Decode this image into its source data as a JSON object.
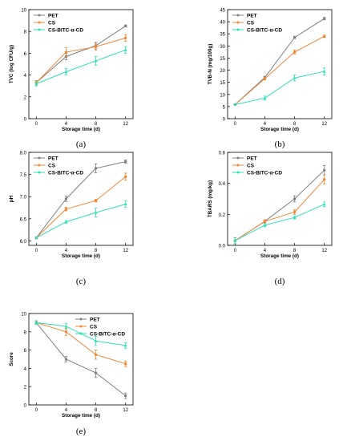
{
  "chart_data": [
    {
      "type": "line",
      "panel": "(a)",
      "xlabel": "Storage time (d)",
      "ylabel": "TVC (log CFU/g)",
      "x": [
        0,
        4,
        8,
        12
      ],
      "xlim": [
        -1,
        13
      ],
      "ylim": [
        0,
        10
      ],
      "yticks": [
        0,
        2,
        4,
        6,
        8,
        10
      ],
      "legend_position": "top-left",
      "series": [
        {
          "name": "PET",
          "color": "#808080",
          "values": [
            3.3,
            5.7,
            6.7,
            8.5
          ],
          "errors": [
            0.2,
            0.3,
            0.3,
            0.1
          ]
        },
        {
          "name": "CS",
          "color": "#f0883a",
          "values": [
            3.3,
            6.1,
            6.6,
            7.4
          ],
          "errors": [
            0.2,
            0.4,
            0.3,
            0.3
          ]
        },
        {
          "name": "CS-BITC-α-CD",
          "color": "#2ee0b8",
          "values": [
            3.2,
            4.3,
            5.3,
            6.3
          ],
          "errors": [
            0.2,
            0.3,
            0.4,
            0.3
          ]
        }
      ]
    },
    {
      "type": "line",
      "panel": "(b)",
      "xlabel": "Storage time (d)",
      "ylabel": "TVB-N (mg/100g)",
      "x": [
        0,
        4,
        8,
        12
      ],
      "xlim": [
        -1,
        13
      ],
      "ylim": [
        0,
        45
      ],
      "yticks": [
        0,
        5,
        10,
        15,
        20,
        25,
        30,
        35,
        40,
        45
      ],
      "legend_position": "top-left",
      "series": [
        {
          "name": "PET",
          "color": "#808080",
          "values": [
            5.8,
            17,
            33.5,
            41.3
          ],
          "errors": [
            0.3,
            0.5,
            0.5,
            0.5
          ]
        },
        {
          "name": "CS",
          "color": "#f0883a",
          "values": [
            5.8,
            16.5,
            27.5,
            34
          ],
          "errors": [
            0.3,
            0.5,
            0.8,
            0.5
          ]
        },
        {
          "name": "CS-BITC-α-CD",
          "color": "#2ee0b8",
          "values": [
            5.8,
            8.5,
            16.8,
            19.5
          ],
          "errors": [
            0.3,
            0.8,
            1.2,
            1.5
          ]
        }
      ]
    },
    {
      "type": "line",
      "panel": "(c)",
      "xlabel": "Storage time (d)",
      "ylabel": "pH",
      "x": [
        0,
        4,
        8,
        12
      ],
      "xlim": [
        -1,
        13
      ],
      "ylim": [
        5.9,
        8.0
      ],
      "yticks": [
        6.0,
        6.5,
        7.0,
        7.5,
        8.0
      ],
      "ytick_labels": [
        "6.0",
        "6.5",
        "7.0",
        "7.5",
        "8.0"
      ],
      "legend_position": "top-left",
      "series": [
        {
          "name": "PET",
          "color": "#808080",
          "values": [
            6.07,
            6.95,
            7.64,
            7.79
          ],
          "errors": [
            0.02,
            0.06,
            0.1,
            0.04
          ]
        },
        {
          "name": "CS",
          "color": "#f0883a",
          "values": [
            6.07,
            6.72,
            6.91,
            7.45
          ],
          "errors": [
            0.02,
            0.04,
            0.03,
            0.08
          ]
        },
        {
          "name": "CS-BITC-α-CD",
          "color": "#2ee0b8",
          "values": [
            6.07,
            6.43,
            6.64,
            6.83
          ],
          "errors": [
            0.02,
            0.03,
            0.1,
            0.07
          ]
        }
      ]
    },
    {
      "type": "line",
      "panel": "(d)",
      "xlabel": "Storage time (d)",
      "ylabel": "TBARS (mg/kg)",
      "x": [
        0,
        4,
        8,
        12
      ],
      "xlim": [
        -1,
        13
      ],
      "ylim": [
        0,
        0.6
      ],
      "yticks": [
        0.0,
        0.2,
        0.4,
        0.6
      ],
      "ytick_labels": [
        "0.0",
        "0.2",
        "0.4",
        "0.6"
      ],
      "legend_position": "top-left",
      "series": [
        {
          "name": "PET",
          "color": "#808080",
          "values": [
            0.03,
            0.155,
            0.3,
            0.485
          ],
          "errors": [
            0.02,
            0.01,
            0.02,
            0.03
          ]
        },
        {
          "name": "CS",
          "color": "#f0883a",
          "values": [
            0.03,
            0.155,
            0.215,
            0.425
          ],
          "errors": [
            0.02,
            0.01,
            0.015,
            0.03
          ]
        },
        {
          "name": "CS-BITC-α-CD",
          "color": "#2ee0b8",
          "values": [
            0.03,
            0.13,
            0.18,
            0.265
          ],
          "errors": [
            0.02,
            0.01,
            0.01,
            0.015
          ]
        }
      ]
    },
    {
      "type": "line",
      "panel": "(e)",
      "xlabel": "Storage time (d)",
      "ylabel": "Score",
      "x": [
        0,
        4,
        8,
        12
      ],
      "xlim": [
        -1,
        13
      ],
      "ylim": [
        0,
        10
      ],
      "yticks": [
        0,
        2,
        4,
        6,
        8,
        10
      ],
      "legend_position": "top-right",
      "series": [
        {
          "name": "PET",
          "color": "#808080",
          "values": [
            9.0,
            5.0,
            3.5,
            1.0
          ],
          "errors": [
            0.2,
            0.3,
            0.5,
            0.3
          ]
        },
        {
          "name": "CS",
          "color": "#f0883a",
          "values": [
            9.0,
            8.0,
            5.5,
            4.5
          ],
          "errors": [
            0.2,
            0.4,
            0.5,
            0.3
          ]
        },
        {
          "name": "CS-BITC-α-CD",
          "color": "#2ee0b8",
          "values": [
            9.0,
            8.6,
            7.0,
            6.5
          ],
          "errors": [
            0.2,
            0.3,
            0.5,
            0.3
          ]
        }
      ]
    }
  ]
}
